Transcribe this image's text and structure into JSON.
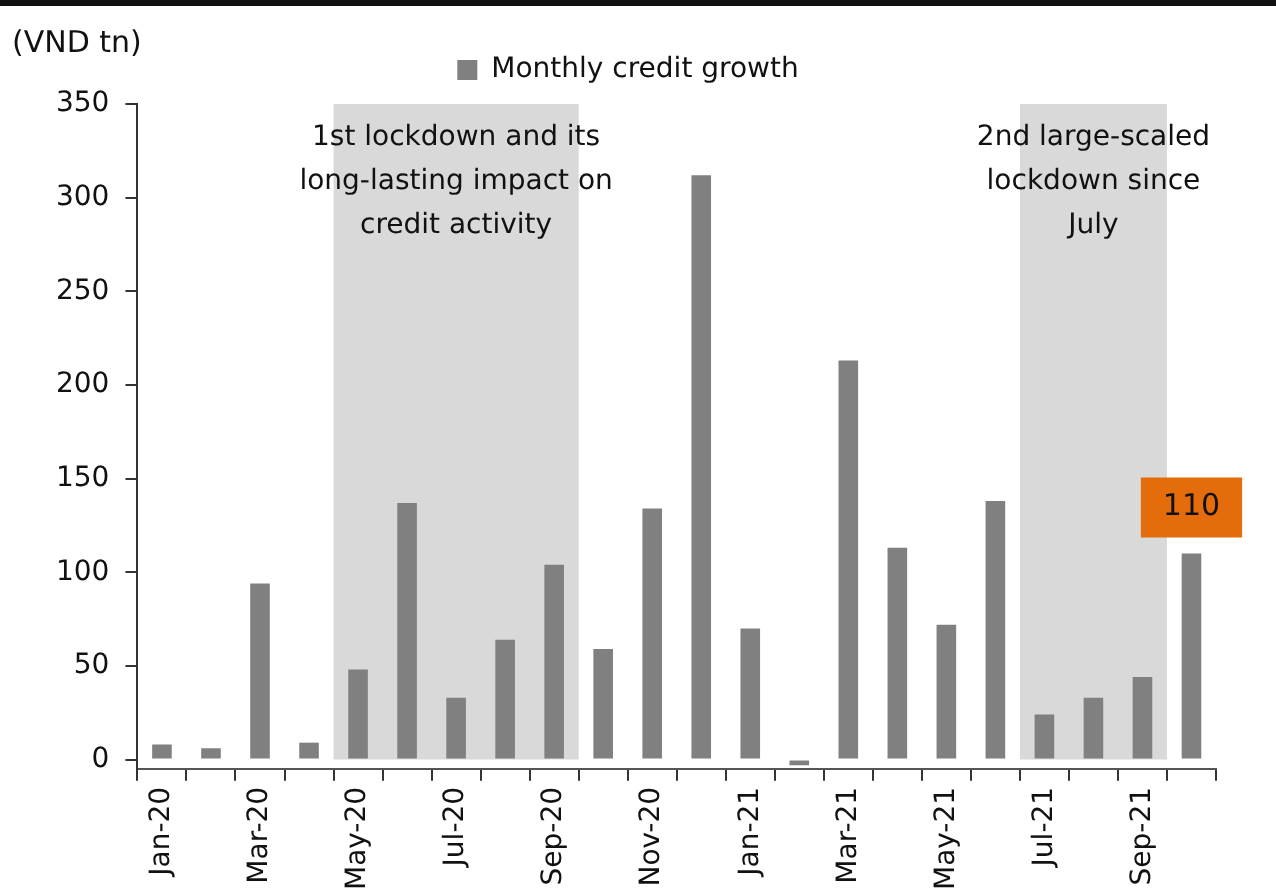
{
  "chart_data": {
    "type": "bar",
    "ylabel": "(VND tn)",
    "categories": [
      "Jan-20",
      null,
      "Mar-20",
      null,
      "May-20",
      null,
      "Jul-20",
      null,
      "Sep-20",
      null,
      "Nov-20",
      null,
      "Jan-21",
      null,
      "Mar-21",
      null,
      "May-21",
      null,
      "Jul-21",
      null,
      "Sep-21",
      null
    ],
    "series": [
      {
        "name": "Monthly credit growth",
        "color": "#808080",
        "values": [
          8,
          6,
          94,
          9,
          48,
          137,
          33,
          64,
          104,
          59,
          134,
          312,
          70,
          -3,
          213,
          113,
          72,
          138,
          24,
          33,
          44,
          110
        ],
        "value_labels": [
          null,
          null,
          null,
          null,
          null,
          null,
          null,
          null,
          null,
          null,
          null,
          null,
          null,
          null,
          null,
          null,
          null,
          null,
          null,
          null,
          null,
          "110"
        ]
      }
    ],
    "ylim": [
      -5,
      350
    ],
    "yticks": [
      0,
      50,
      100,
      150,
      200,
      250,
      300,
      350
    ],
    "grid": false,
    "legend": "top",
    "bands": [
      {
        "axis": "x",
        "from": "May-20",
        "to": "Sep-20",
        "label": "1st lockdown and its long-lasting impact on credit activity",
        "color": "#d9d9d9"
      },
      {
        "axis": "x",
        "from": "Jul-21",
        "to": "Sep-21",
        "label": "2nd large-scaled lockdown since July",
        "color": "#d9d9d9"
      }
    ]
  }
}
